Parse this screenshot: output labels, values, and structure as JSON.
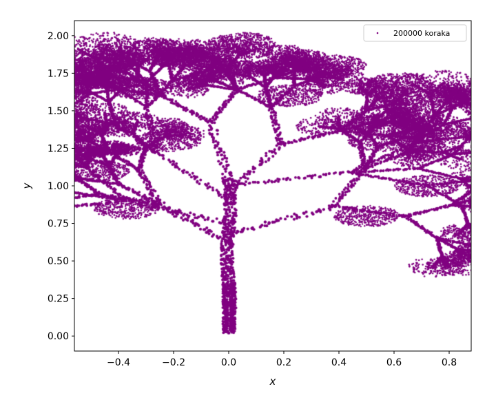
{
  "chart_data": {
    "type": "scatter",
    "title": "",
    "xlabel": "x",
    "ylabel": "y",
    "xlim": [
      -0.56,
      0.88
    ],
    "ylim": [
      -0.1,
      2.1
    ],
    "xticks": [
      -0.4,
      -0.2,
      0.0,
      0.2,
      0.4,
      0.6,
      0.8
    ],
    "xtick_labels": [
      "−0.4",
      "−0.2",
      "0.0",
      "0.2",
      "0.4",
      "0.6",
      "0.8"
    ],
    "yticks": [
      0.0,
      0.25,
      0.5,
      0.75,
      1.0,
      1.25,
      1.5,
      1.75,
      2.0
    ],
    "ytick_labels": [
      "0.00",
      "0.25",
      "0.50",
      "0.75",
      "1.00",
      "1.25",
      "1.50",
      "1.75",
      "2.00"
    ],
    "grid": false,
    "legend_position": "top-right",
    "series": [
      {
        "name": "200000 koraka",
        "color": "#800080",
        "marker": "point",
        "point_count": 200000,
        "shape": "fractal-tree",
        "trunk": [
          {
            "x": -0.015,
            "y": 0.02
          },
          {
            "x": 0.015,
            "y": 0.02
          },
          {
            "x": 0.0,
            "y": 0.62
          },
          {
            "x": 0.0,
            "y": 1.05
          }
        ],
        "branch_points": [
          {
            "x": -0.5,
            "y": 1.78
          },
          {
            "x": -0.32,
            "y": 1.65
          },
          {
            "x": -0.1,
            "y": 1.85
          },
          {
            "x": 0.05,
            "y": 1.95
          },
          {
            "x": 0.22,
            "y": 1.6
          },
          {
            "x": 0.38,
            "y": 1.8
          },
          {
            "x": 0.62,
            "y": 1.68
          },
          {
            "x": 0.8,
            "y": 1.58
          },
          {
            "x": 0.55,
            "y": 1.3
          },
          {
            "x": 0.72,
            "y": 1.0
          },
          {
            "x": 0.5,
            "y": 0.8
          },
          {
            "x": -0.48,
            "y": 1.1
          },
          {
            "x": -0.37,
            "y": 0.85
          },
          {
            "x": -0.22,
            "y": 1.3
          }
        ]
      }
    ]
  }
}
